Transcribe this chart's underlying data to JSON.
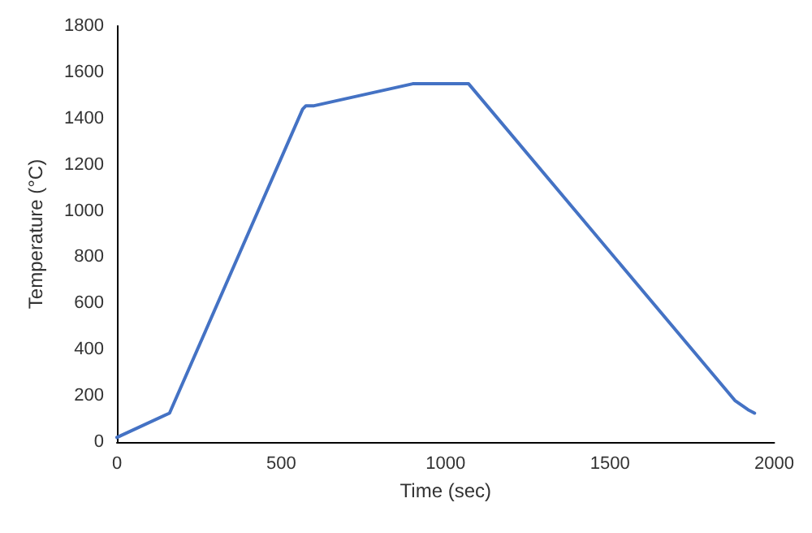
{
  "chart_data": {
    "type": "line",
    "xlabel": "Time (sec)",
    "ylabel": "Temperature (°C)",
    "x": [
      0,
      160,
      565,
      575,
      600,
      900,
      1070,
      1880,
      1920,
      1940
    ],
    "series": [
      {
        "color": "#4472c4",
        "values": [
          20,
          125,
          1440,
          1455,
          1455,
          1550,
          1550,
          180,
          140,
          125
        ]
      }
    ],
    "xlim": [
      0,
      2000
    ],
    "xticks": [
      0,
      500,
      1000,
      1500,
      2000
    ],
    "ylim": [
      0,
      1800
    ],
    "yticks": [
      0,
      200,
      400,
      600,
      800,
      1000,
      1200,
      1400,
      1600,
      1800
    ],
    "grid": false,
    "marker": "none",
    "line_style": "solid"
  }
}
